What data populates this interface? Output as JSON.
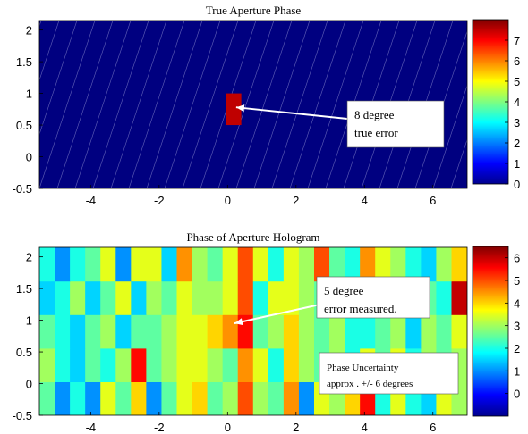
{
  "chart_data": [
    {
      "type": "heatmap",
      "title": "True Aperture Phase",
      "xlim": [
        -5.5,
        7.0
      ],
      "ylim": [
        -0.5,
        2.15
      ],
      "xticks": [
        -4,
        -2,
        0,
        2,
        4,
        6
      ],
      "yticks": [
        -0.5,
        0,
        0.5,
        1,
        1.5,
        2
      ],
      "background_value": 0,
      "patch": {
        "x": [
          -0.05,
          0.4
        ],
        "y": [
          0.5,
          1.0
        ],
        "value": 7.5
      },
      "colorbar": {
        "min": 0,
        "max": 8,
        "ticks": [
          0,
          1,
          2,
          3,
          4,
          5,
          6,
          7
        ]
      },
      "hatch_lines": true,
      "annotation": {
        "lines": [
          "8 degree",
          "true error"
        ],
        "arrow_to": {
          "x": 0.25,
          "y": 0.78
        }
      }
    },
    {
      "type": "heatmap",
      "title": "Phase of Aperture Hologram",
      "xlim": [
        -5.5,
        7.0
      ],
      "ylim": [
        -0.5,
        2.15
      ],
      "xticks": [
        -4,
        -2,
        0,
        2,
        4,
        6
      ],
      "yticks": [
        -0.5,
        0,
        0.5,
        1,
        1.5,
        2
      ],
      "grid": {
        "x0": -5.5,
        "dx": 0.446,
        "y0": -0.5,
        "dy": 0.53,
        "cols": 28,
        "rows": 5,
        "values": [
          [
            2.5,
            1.0,
            2.0,
            1.0,
            3.5,
            2.5,
            4.0,
            1.0,
            2.5,
            3.5,
            4.0,
            2.5,
            3.0,
            5.0,
            3.0,
            2.5,
            4.5,
            1.0,
            3.5,
            3.0,
            4.0,
            5.5,
            2.0,
            3.5,
            2.0,
            1.5,
            3.5,
            3.0
          ],
          [
            3.0,
            2.0,
            1.5,
            2.5,
            2.0,
            3.0,
            5.5,
            2.5,
            3.0,
            3.5,
            3.5,
            3.0,
            2.5,
            4.5,
            3.5,
            2.0,
            4.0,
            3.0,
            2.5,
            3.0,
            2.0,
            3.5,
            2.5,
            3.5,
            2.0,
            3.0,
            2.5,
            3.0
          ],
          [
            2.5,
            2.0,
            1.5,
            2.5,
            3.0,
            1.5,
            2.5,
            2.5,
            3.0,
            3.5,
            3.5,
            4.0,
            4.5,
            5.5,
            2.5,
            3.0,
            4.0,
            3.0,
            2.5,
            3.0,
            2.0,
            2.0,
            2.5,
            3.0,
            1.5,
            3.0,
            2.5,
            3.5
          ],
          [
            1.5,
            2.0,
            3.0,
            1.5,
            2.5,
            3.5,
            1.5,
            3.0,
            2.5,
            3.5,
            3.0,
            3.0,
            3.5,
            5.0,
            2.0,
            3.5,
            3.5,
            3.0,
            2.5,
            3.5,
            2.5,
            3.0,
            3.0,
            3.0,
            3.5,
            2.5,
            2.0,
            6.0
          ],
          [
            2.0,
            1.0,
            2.0,
            2.5,
            3.5,
            1.0,
            3.5,
            3.5,
            1.5,
            4.5,
            3.0,
            2.5,
            3.5,
            5.0,
            3.5,
            2.0,
            3.5,
            3.0,
            5.0,
            2.5,
            2.0,
            4.5,
            3.5,
            3.0,
            2.0,
            1.5,
            3.0,
            4.0
          ]
        ]
      },
      "colorbar": {
        "min": -1,
        "max": 6.5,
        "ticks": [
          0,
          1,
          2,
          3,
          4,
          5,
          6
        ]
      },
      "annotation": {
        "lines": [
          "5 degree",
          "error measured."
        ],
        "arrow_to": {
          "x": 0.2,
          "y": 0.95
        }
      },
      "annotation2": {
        "lines": [
          "Phase Uncertainty",
          "approx . +/- 6 degrees"
        ]
      }
    }
  ]
}
